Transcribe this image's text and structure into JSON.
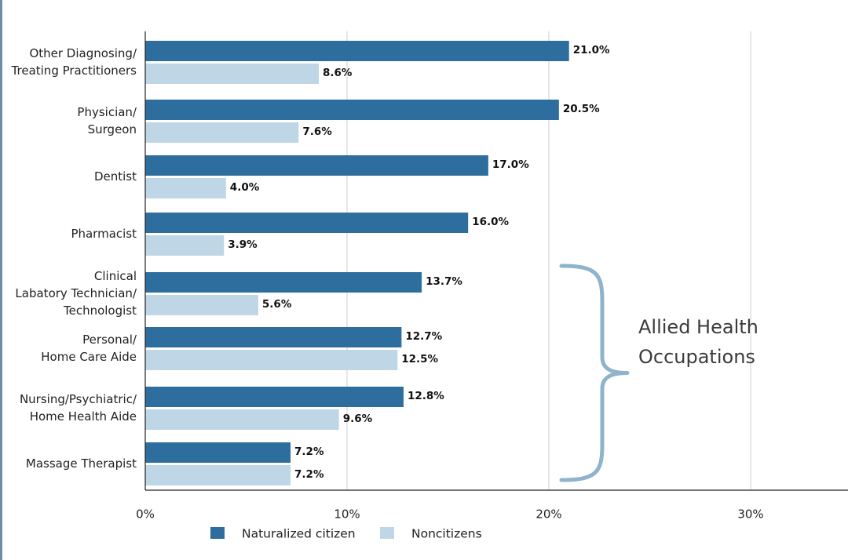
{
  "chart_data": {
    "type": "bar",
    "orientation": "horizontal",
    "categories": [
      [
        "Other Diagnosing/",
        "Treating Practitioners"
      ],
      [
        "Physician/",
        "Surgeon"
      ],
      [
        "Dentist"
      ],
      [
        "Pharmacist"
      ],
      [
        "Clinical",
        "Labatory Technician/",
        "Technologist"
      ],
      [
        "Personal/",
        "Home Care Aide"
      ],
      [
        "Nursing/Psychiatric/",
        "Home Health Aide"
      ],
      [
        "Massage Therapist"
      ]
    ],
    "series": [
      {
        "name": "Naturalized citizen",
        "color": "#2e6e9e",
        "values": [
          21.0,
          20.5,
          17.0,
          16.0,
          13.7,
          12.7,
          12.8,
          7.2
        ],
        "labels": [
          "21.0%",
          "20.5%",
          "17.0%",
          "16.0%",
          "13.7%",
          "12.7%",
          "12.8%",
          "7.2%"
        ]
      },
      {
        "name": "Noncitizens",
        "color": "#bfd6e6",
        "values": [
          8.6,
          7.6,
          4.0,
          3.9,
          5.6,
          12.5,
          9.6,
          7.2
        ],
        "labels": [
          "8.6%",
          "7.6%",
          "4.0%",
          "3.9%",
          "5.6%",
          "12.5%",
          "9.6%",
          "7.2%"
        ]
      }
    ],
    "xlim": [
      0,
      35
    ],
    "xticks": [
      0,
      10,
      20,
      30
    ],
    "xtick_labels": [
      "0%",
      "10%",
      "20%",
      "30%"
    ],
    "grid": "vertical",
    "legend": "bottom",
    "annotation": {
      "text": [
        "Allied Health",
        "Occupations"
      ],
      "brace_color": "#8fb3cc",
      "spans_categories": [
        4,
        7
      ]
    }
  }
}
